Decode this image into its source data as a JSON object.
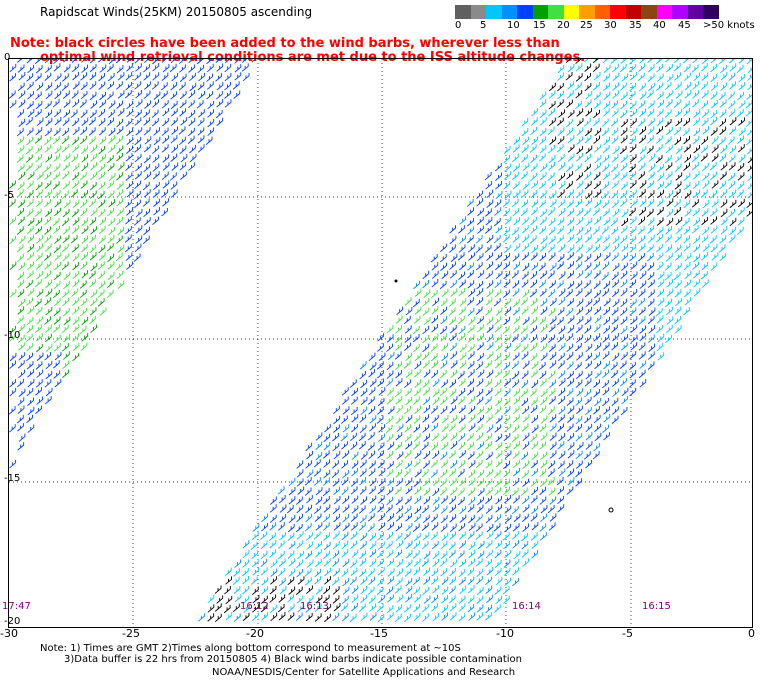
{
  "title": "Rapidscat Winds(25KM) 20150805 ascending",
  "note_line1": "Note: black circles have been added to the wind barbs, wherever less than",
  "note_line2": "optimal wind retrieval conditions are met due to the ISS altitude changes.",
  "colorbar": {
    "colors": [
      "#606060",
      "#8a8a8a",
      "#00c8ff",
      "#0090ff",
      "#0040ff",
      "#00a000",
      "#40e040",
      "#ffff00",
      "#ffa000",
      "#ff6000",
      "#ff0000",
      "#c00000",
      "#8b4513",
      "#ff00ff",
      "#b000ff",
      "#6000a0",
      "#300060"
    ],
    "labels": [
      "0",
      "5",
      "10",
      "15",
      "20",
      "25",
      "30",
      "35",
      "40",
      "45",
      ">50 knots"
    ]
  },
  "axes": {
    "y_labels": [
      "0",
      "-5",
      "-10",
      "-15",
      "-20"
    ],
    "x_labels": [
      "-30",
      "-25",
      "-20",
      "-15",
      "-10",
      "-5",
      "0"
    ]
  },
  "swath_times": [
    "17:47",
    "16:12",
    "16:13",
    "16:14",
    "16:15"
  ],
  "footer": {
    "line1": "Note: 1) Times are GMT 2)Times along bottom correspond to measurement at ~10S",
    "line2": "3)Data buffer is 22 hrs from 20150805 4) Black wind barbs indicate possible contamination",
    "line3": "NOAA/NESDIS/Center for Satellite Applications and Research"
  }
}
